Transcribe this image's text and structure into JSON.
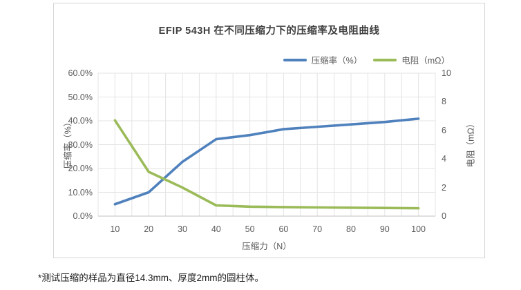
{
  "footnote": "*测试压缩的样品为直径14.3mm、厚度2mm的圆柱体。",
  "chart_data": {
    "type": "line",
    "title": "EFIP 543H 在不同压缩力下的压缩率及电阻曲线",
    "x": [
      10,
      20,
      30,
      40,
      50,
      60,
      70,
      80,
      90,
      100
    ],
    "xlabel": "压缩力（N）",
    "series": [
      {
        "name": "压缩率（%）",
        "axis": "left",
        "color": "#4F81BD",
        "values": [
          5.0,
          10.0,
          22.8,
          32.3,
          34.0,
          36.5,
          37.5,
          38.5,
          39.5,
          40.9
        ]
      },
      {
        "name": "电阻（mΩ）",
        "axis": "right",
        "color": "#9BBB59",
        "values": [
          6.7,
          3.1,
          2.0,
          0.75,
          0.66,
          0.63,
          0.61,
          0.59,
          0.57,
          0.55
        ]
      }
    ],
    "left_axis": {
      "label": "压缩率（%）",
      "min": 0,
      "max": 60,
      "tick_values": [
        0,
        10,
        20,
        30,
        40,
        50,
        60
      ],
      "tick_labels": [
        "0.0%",
        "10.0%",
        "20.0%",
        "30.0%",
        "40.0%",
        "50.0%",
        "60.0%"
      ]
    },
    "right_axis": {
      "label": "电阻（mΩ）",
      "min": 0,
      "max": 10,
      "tick_values": [
        0,
        2,
        4,
        6,
        8,
        10
      ],
      "tick_labels": [
        "0",
        "2",
        "4",
        "6",
        "8",
        "10"
      ]
    },
    "x_axis": {
      "label": "压缩力（N）",
      "min": 5,
      "max": 105,
      "grid_step": 5,
      "tick_values": [
        10,
        20,
        30,
        40,
        50,
        60,
        70,
        80,
        90,
        100
      ],
      "tick_labels": [
        "10",
        "20",
        "30",
        "40",
        "50",
        "60",
        "70",
        "80",
        "90",
        "100"
      ]
    },
    "legend_position": "top-right",
    "grid": true,
    "styles": {
      "grid_color": "#e3e3e3",
      "axis_line_color": "#bfbfbf",
      "tick_text_color": "#595959",
      "title_color": "#3f3f3f",
      "line_width": 3.6
    }
  }
}
